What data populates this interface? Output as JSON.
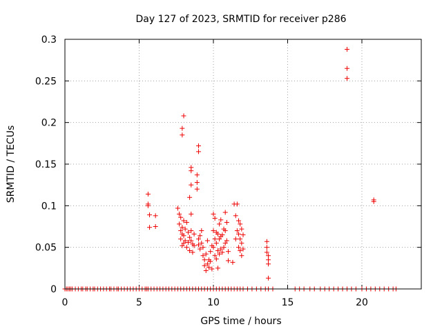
{
  "chart_data": {
    "type": "scatter",
    "title": "Day 127 of 2023, SRMTID for receiver p286",
    "xlabel": "GPS time / hours",
    "ylabel": "SRMTID / TECUs",
    "xlim": [
      0,
      24
    ],
    "ylim": [
      0,
      0.3
    ],
    "xticks": [
      0,
      5,
      10,
      15,
      20
    ],
    "xtick_labels": [
      "0",
      "5",
      "10",
      "15",
      "20"
    ],
    "yticks": [
      0,
      0.05,
      0.1,
      0.15,
      0.2,
      0.25,
      0.3
    ],
    "ytick_labels": [
      "0",
      "0.05",
      "0.1",
      "0.15",
      "0.2",
      "0.25",
      "0.3"
    ],
    "grid": true,
    "marker": "+",
    "color": "#ee0000",
    "series": [
      {
        "name": "SRMTID",
        "x": [
          0.0,
          0.1,
          0.2,
          0.3,
          0.4,
          0.5,
          0.7,
          0.9,
          1.1,
          1.2,
          1.4,
          1.5,
          1.7,
          1.9,
          2.0,
          2.2,
          2.4,
          2.6,
          2.8,
          3.0,
          3.1,
          3.3,
          3.5,
          3.6,
          3.8,
          4.0,
          4.2,
          4.4,
          4.6,
          4.8,
          5.0,
          5.2,
          5.4,
          5.5,
          5.6,
          5.8,
          6.0,
          6.2,
          6.4,
          6.6,
          6.8,
          7.0,
          7.2,
          7.4,
          7.6,
          7.8,
          8.0,
          8.2,
          8.4,
          8.6,
          8.8,
          9.0,
          9.2,
          9.4,
          9.6,
          9.8,
          10.0,
          10.2,
          10.4,
          10.6,
          10.8,
          11.0,
          11.2,
          11.4,
          11.6,
          11.8,
          12.0,
          12.3,
          12.6,
          12.9,
          13.2,
          13.5,
          13.7,
          14.0,
          15.5,
          15.8,
          16.1,
          16.5,
          16.8,
          17.2,
          17.5,
          17.8,
          18.1,
          18.4,
          18.7,
          19.0,
          19.3,
          19.6,
          20.0,
          20.3,
          20.6,
          20.9,
          21.2,
          21.5,
          21.8,
          22.1,
          22.3,
          5.6,
          5.6,
          5.6,
          5.7,
          5.7,
          6.1,
          6.1,
          7.6,
          7.7,
          7.7,
          7.8,
          7.8,
          7.8,
          7.9,
          7.9,
          7.9,
          8.0,
          8.0,
          8.0,
          8.1,
          8.1,
          8.2,
          8.2,
          8.3,
          8.3,
          8.4,
          8.4,
          8.5,
          8.5,
          8.5,
          8.6,
          8.6,
          8.7,
          8.7,
          9.0,
          9.0,
          9.1,
          9.1,
          9.2,
          9.2,
          9.3,
          9.3,
          9.4,
          9.4,
          9.5,
          9.5,
          9.6,
          9.6,
          9.7,
          9.7,
          9.8,
          9.8,
          9.9,
          9.9,
          10.0,
          10.0,
          10.0,
          10.1,
          10.1,
          10.1,
          10.2,
          10.2,
          10.2,
          10.3,
          10.3,
          10.3,
          10.4,
          10.4,
          10.4,
          10.5,
          10.5,
          10.5,
          10.6,
          10.6,
          10.7,
          10.7,
          10.8,
          10.8,
          10.8,
          10.9,
          10.9,
          11.0,
          11.0,
          11.3,
          11.4,
          11.5,
          11.5,
          11.6,
          11.6,
          11.7,
          11.7,
          11.7,
          11.8,
          11.8,
          11.8,
          11.9,
          11.9,
          11.9,
          12.0,
          12.0,
          13.6,
          13.6,
          13.6,
          13.7,
          13.7,
          13.7,
          13.7,
          8.0,
          7.9,
          7.9,
          9.0,
          9.0,
          8.5,
          8.5,
          8.9,
          8.9,
          8.9,
          8.5,
          8.4,
          19.0,
          19.0,
          19.0,
          20.8,
          20.8
        ],
        "y": [
          0,
          0,
          0,
          0,
          0,
          0,
          0,
          0,
          0,
          0,
          0,
          0,
          0,
          0,
          0,
          0,
          0,
          0,
          0,
          0,
          0,
          0,
          0,
          0,
          0,
          0,
          0,
          0,
          0,
          0,
          0,
          0,
          0,
          0,
          0,
          0,
          0,
          0,
          0,
          0,
          0,
          0,
          0,
          0,
          0,
          0,
          0,
          0,
          0,
          0,
          0,
          0,
          0,
          0,
          0,
          0,
          0,
          0,
          0,
          0,
          0,
          0,
          0,
          0,
          0,
          0,
          0,
          0,
          0,
          0,
          0,
          0,
          0,
          0,
          0,
          0,
          0,
          0,
          0,
          0,
          0,
          0,
          0,
          0,
          0,
          0,
          0,
          0,
          0,
          0,
          0,
          0,
          0,
          0,
          0,
          0,
          0,
          0.114,
          0.102,
          0.1,
          0.089,
          0.074,
          0.088,
          0.075,
          0.097,
          0.09,
          0.078,
          0.086,
          0.07,
          0.06,
          0.074,
          0.066,
          0.052,
          0.082,
          0.064,
          0.055,
          0.072,
          0.058,
          0.08,
          0.05,
          0.068,
          0.056,
          0.062,
          0.046,
          0.09,
          0.07,
          0.058,
          0.054,
          0.044,
          0.066,
          0.052,
          0.06,
          0.053,
          0.064,
          0.048,
          0.07,
          0.055,
          0.04,
          0.05,
          0.028,
          0.035,
          0.022,
          0.042,
          0.03,
          0.058,
          0.035,
          0.026,
          0.045,
          0.033,
          0.052,
          0.024,
          0.09,
          0.07,
          0.05,
          0.085,
          0.06,
          0.04,
          0.068,
          0.055,
          0.036,
          0.066,
          0.046,
          0.025,
          0.078,
          0.06,
          0.042,
          0.083,
          0.063,
          0.048,
          0.065,
          0.044,
          0.072,
          0.05,
          0.092,
          0.07,
          0.055,
          0.08,
          0.058,
          0.045,
          0.034,
          0.032,
          0.102,
          0.088,
          0.06,
          0.102,
          0.07,
          0.082,
          0.066,
          0.05,
          0.078,
          0.06,
          0.046,
          0.072,
          0.055,
          0.04,
          0.065,
          0.048,
          0.057,
          0.05,
          0.044,
          0.04,
          0.035,
          0.03,
          0.013,
          0.208,
          0.193,
          0.185,
          0.172,
          0.165,
          0.146,
          0.142,
          0.137,
          0.128,
          0.12,
          0.125,
          0.11,
          0.288,
          0.265,
          0.253,
          0.107,
          0.105
        ]
      }
    ]
  }
}
